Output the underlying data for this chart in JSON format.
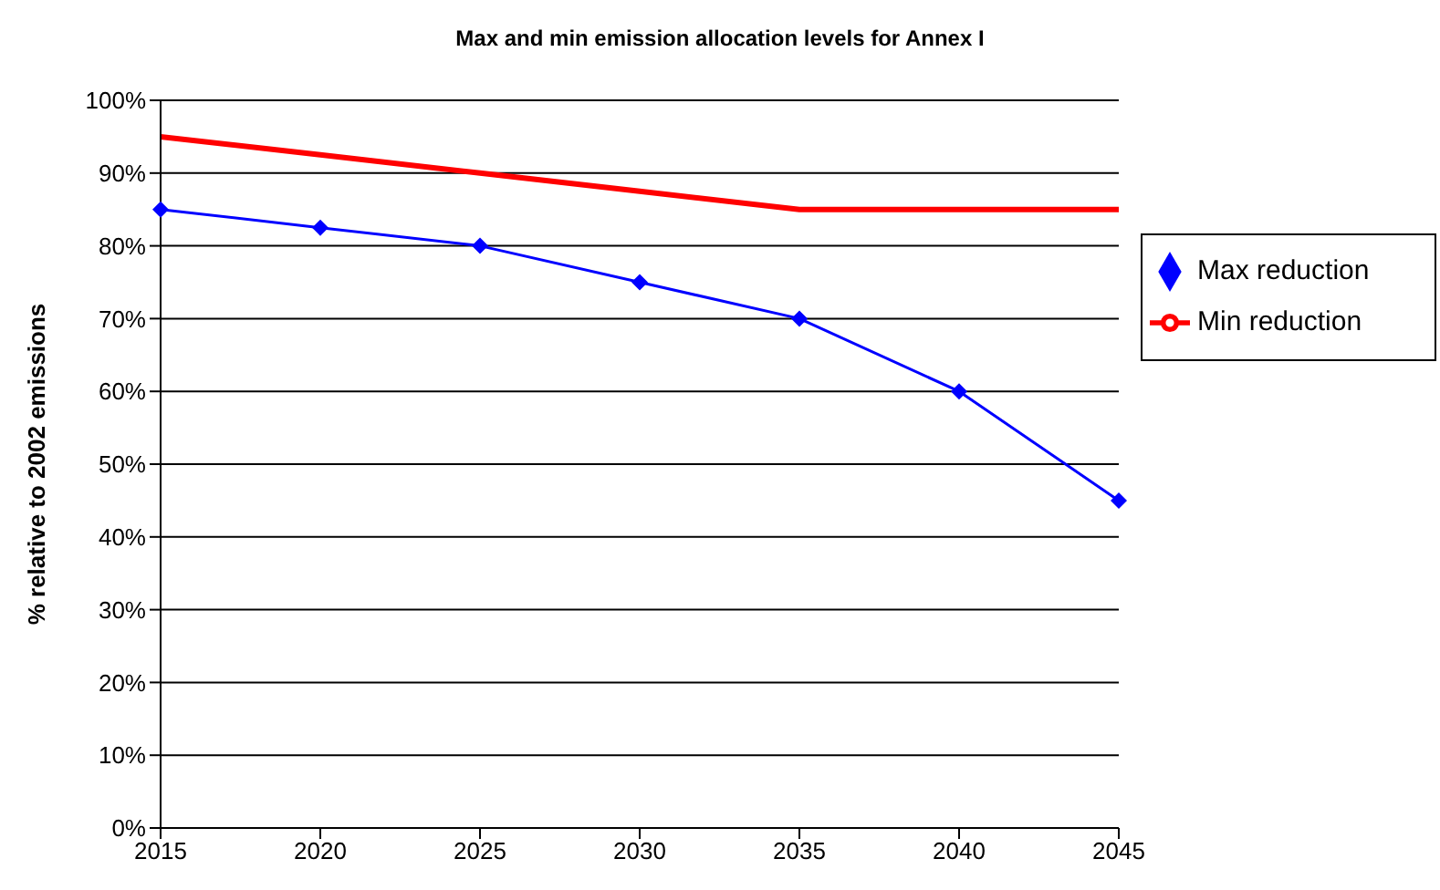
{
  "chart_data": {
    "type": "line",
    "title": "Max and min emission allocation levels for Annex I",
    "ylabel": "% relative to 2002 emissions",
    "categories": [
      "2015",
      "2020",
      "2025",
      "2030",
      "2035",
      "2040",
      "2045"
    ],
    "series": [
      {
        "name": "Min reduction",
        "color": "#ff0000",
        "marker": "none",
        "values": [
          95,
          92.5,
          90,
          87.5,
          85,
          85,
          85
        ]
      },
      {
        "name": "Max reduction",
        "color": "#0000ff",
        "marker": "diamond",
        "values": [
          85,
          82.5,
          80,
          75,
          70,
          60,
          45
        ]
      }
    ],
    "ylim": [
      0,
      100
    ],
    "yticks": [
      {
        "value": 0,
        "label": "0%"
      },
      {
        "value": 10,
        "label": "10%"
      },
      {
        "value": 20,
        "label": "20%"
      },
      {
        "value": 30,
        "label": "30%"
      },
      {
        "value": 40,
        "label": "40%"
      },
      {
        "value": 50,
        "label": "50%"
      },
      {
        "value": 60,
        "label": "60%"
      },
      {
        "value": 70,
        "label": "70%"
      },
      {
        "value": 80,
        "label": "80%"
      },
      {
        "value": 90,
        "label": "90%"
      },
      {
        "value": 100,
        "label": "100%"
      }
    ],
    "grid": "y",
    "legend": "right"
  }
}
